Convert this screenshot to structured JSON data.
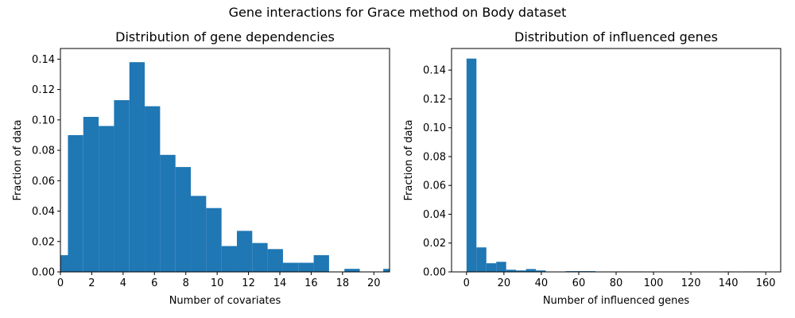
{
  "figure": {
    "title": "Gene interactions for Grace method on Body dataset"
  },
  "chart_data": [
    {
      "type": "bar",
      "title": "Distribution of gene dependencies",
      "xlabel": "Number of covariates",
      "ylabel": "Fraction of data",
      "xlim": [
        0,
        21
      ],
      "ylim": [
        0,
        0.147
      ],
      "bin_width": 0.98,
      "x_ticks": [
        0,
        2,
        4,
        6,
        8,
        10,
        12,
        14,
        16,
        18,
        20
      ],
      "y_ticks": [
        0.0,
        0.02,
        0.04,
        0.06,
        0.08,
        0.1,
        0.12,
        0.14
      ],
      "y_tick_labels": [
        "0.00",
        "0.02",
        "0.04",
        "0.06",
        "0.08",
        "0.10",
        "0.12",
        "0.14"
      ],
      "bin_starts": [
        0.0,
        0.48,
        1.46,
        2.44,
        3.42,
        4.4,
        5.38,
        6.36,
        7.34,
        8.32,
        9.3,
        10.28,
        11.26,
        12.24,
        13.22,
        14.2,
        15.18,
        16.16,
        17.14,
        18.12,
        19.1,
        20.08,
        20.6
      ],
      "values": [
        0.011,
        0.09,
        0.102,
        0.096,
        0.113,
        0.138,
        0.109,
        0.077,
        0.069,
        0.05,
        0.042,
        0.017,
        0.027,
        0.019,
        0.015,
        0.006,
        0.006,
        0.011,
        0.0,
        0.002,
        0.0,
        0.0,
        0.002
      ],
      "color": "#1f77b4",
      "grid": false
    },
    {
      "type": "bar",
      "title": "Distribution of influenced genes",
      "xlabel": "Number of influenced genes",
      "ylabel": "Fraction of data",
      "xlim": [
        -8,
        168
      ],
      "ylim": [
        0,
        0.155
      ],
      "bin_width": 5.3,
      "x_ticks": [
        0,
        20,
        40,
        60,
        80,
        100,
        120,
        140,
        160
      ],
      "y_ticks": [
        0.0,
        0.02,
        0.04,
        0.06,
        0.08,
        0.1,
        0.12,
        0.14
      ],
      "y_tick_labels": [
        "0.00",
        "0.02",
        "0.04",
        "0.06",
        "0.08",
        "0.10",
        "0.12",
        "0.14"
      ],
      "bin_starts": [
        0,
        5.3,
        10.6,
        15.9,
        21.2,
        26.5,
        31.8,
        37.1,
        42.4,
        47.7,
        53.0,
        58.3,
        63.6,
        68.9,
        74.2,
        79.5,
        84.8,
        90.1,
        95.4,
        100.7,
        106.0,
        111.3,
        116.6,
        121.9,
        127.2,
        132.5,
        137.8,
        143.1,
        148.4,
        153.7
      ],
      "values": [
        0.148,
        0.017,
        0.006,
        0.007,
        0.0015,
        0.001,
        0.002,
        0.001,
        0.0,
        0.0,
        0.0005,
        0.0005,
        0.0005,
        0.0,
        0.0,
        0.0003,
        0.0003,
        0.0003,
        0.0,
        0.0,
        0.0,
        0.0,
        0.0,
        0.0,
        0.0,
        0.0,
        0.0003,
        0.0,
        0.0003,
        0.0003
      ],
      "color": "#1f77b4",
      "grid": false
    }
  ]
}
